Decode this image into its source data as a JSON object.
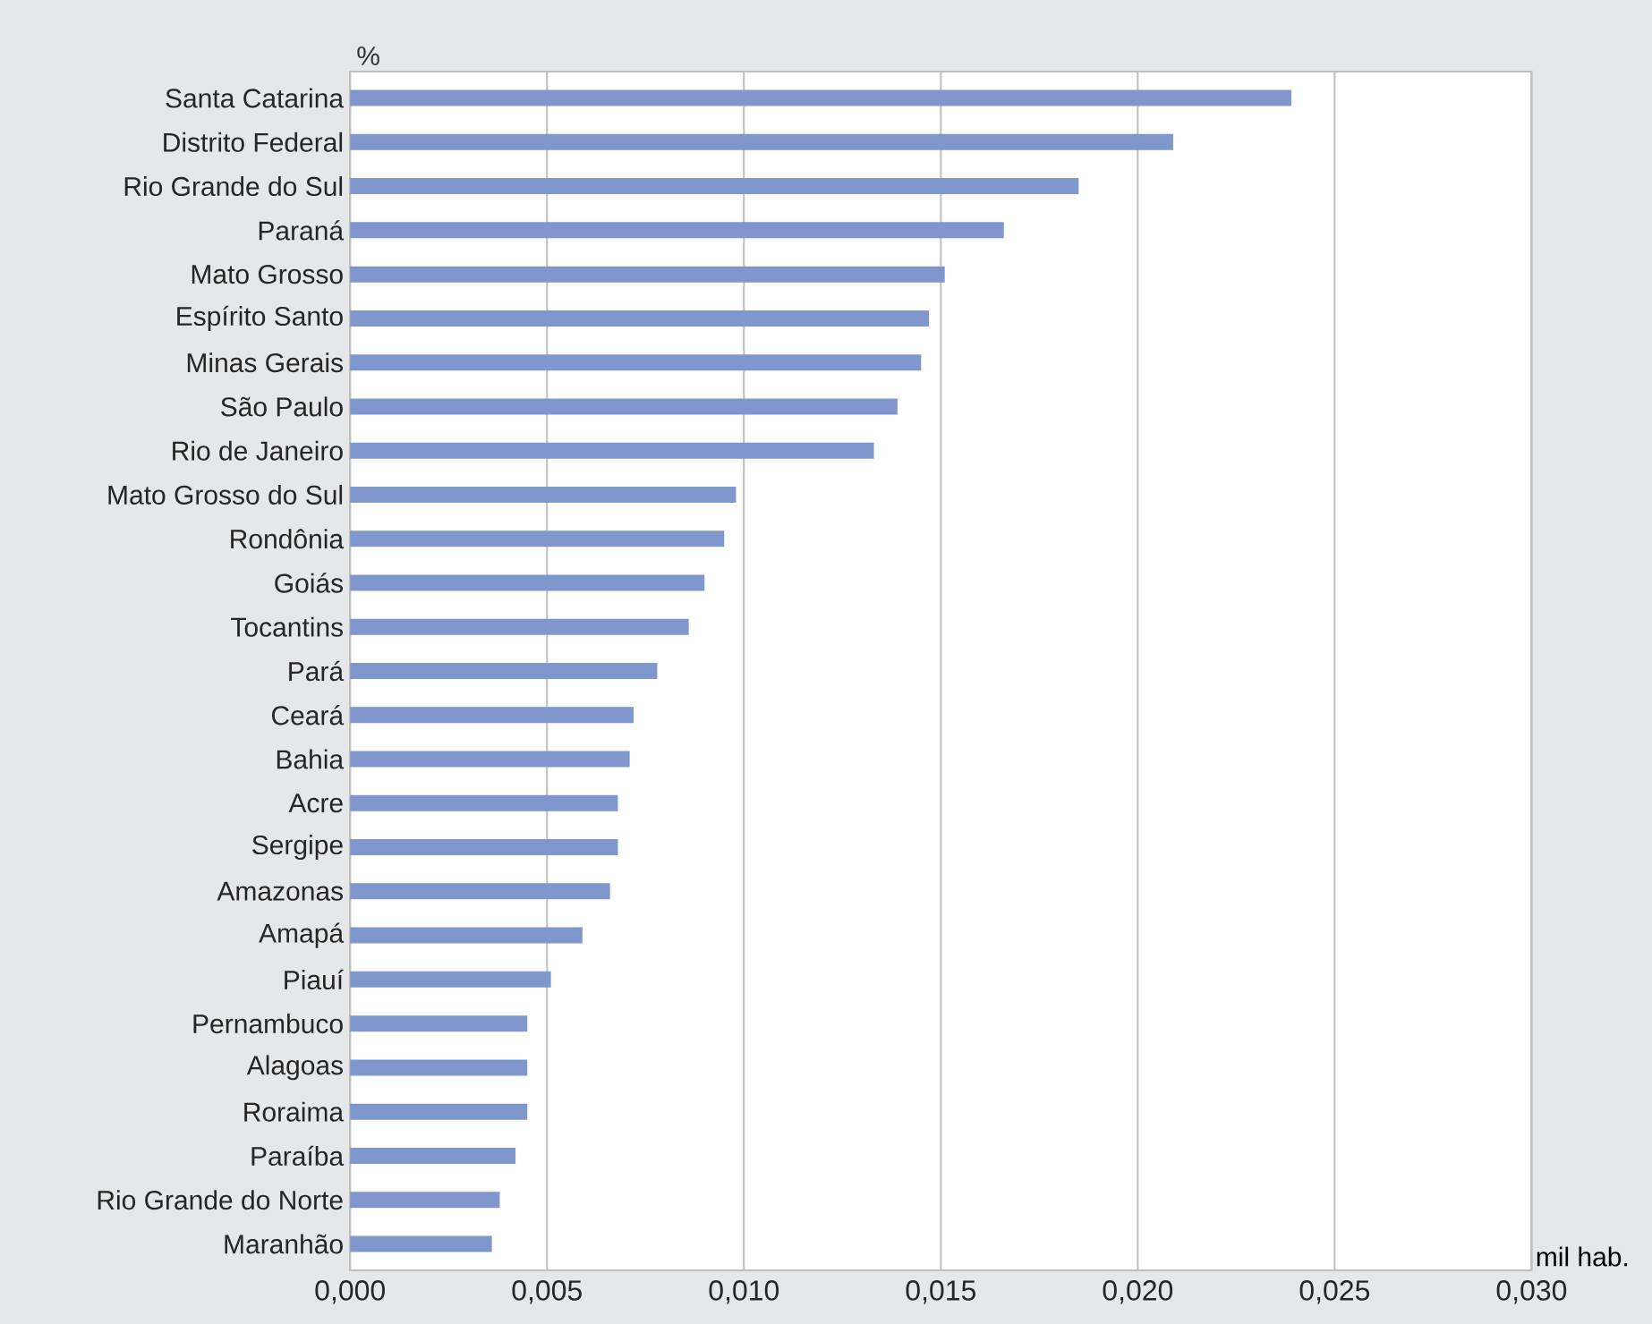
{
  "chart_data": {
    "type": "bar",
    "orientation": "horizontal",
    "xlabel": "mil hab.",
    "annotations": [
      "%"
    ],
    "categories": [
      "Santa Catarina",
      "Distrito Federal",
      "Rio Grande do Sul",
      "Paraná",
      "Mato Grosso",
      "Espírito Santo",
      "Minas Gerais",
      "São Paulo",
      "Rio de Janeiro",
      "Mato Grosso do Sul",
      "Rondônia",
      "Goiás",
      "Tocantins",
      "Pará",
      "Ceará",
      "Bahia",
      "Acre",
      "Sergipe",
      "Amazonas",
      "Amapá",
      "Piauí",
      "Pernambuco",
      "Alagoas",
      "Roraima",
      "Paraíba",
      "Rio Grande do Norte",
      "Maranhão"
    ],
    "values": [
      0.0239,
      0.0209,
      0.0185,
      0.0166,
      0.0151,
      0.0147,
      0.0145,
      0.0139,
      0.0133,
      0.0098,
      0.0095,
      0.009,
      0.0086,
      0.0078,
      0.0072,
      0.0071,
      0.0068,
      0.0068,
      0.0066,
      0.0059,
      0.0051,
      0.0045,
      0.0045,
      0.0045,
      0.0042,
      0.0038,
      0.0036
    ],
    "color": "#7f97cd",
    "xlim": [
      0,
      0.03
    ],
    "xticks": [
      {
        "value": 0,
        "label": "0,000"
      },
      {
        "value": 0.005,
        "label": "0,005"
      },
      {
        "value": 0.01,
        "label": "0,010"
      },
      {
        "value": 0.015,
        "label": "0,015"
      },
      {
        "value": 0.02,
        "label": "0,020"
      },
      {
        "value": 0.025,
        "label": "0,025"
      },
      {
        "value": 0.03,
        "label": "0,030"
      }
    ],
    "grid": "x"
  }
}
